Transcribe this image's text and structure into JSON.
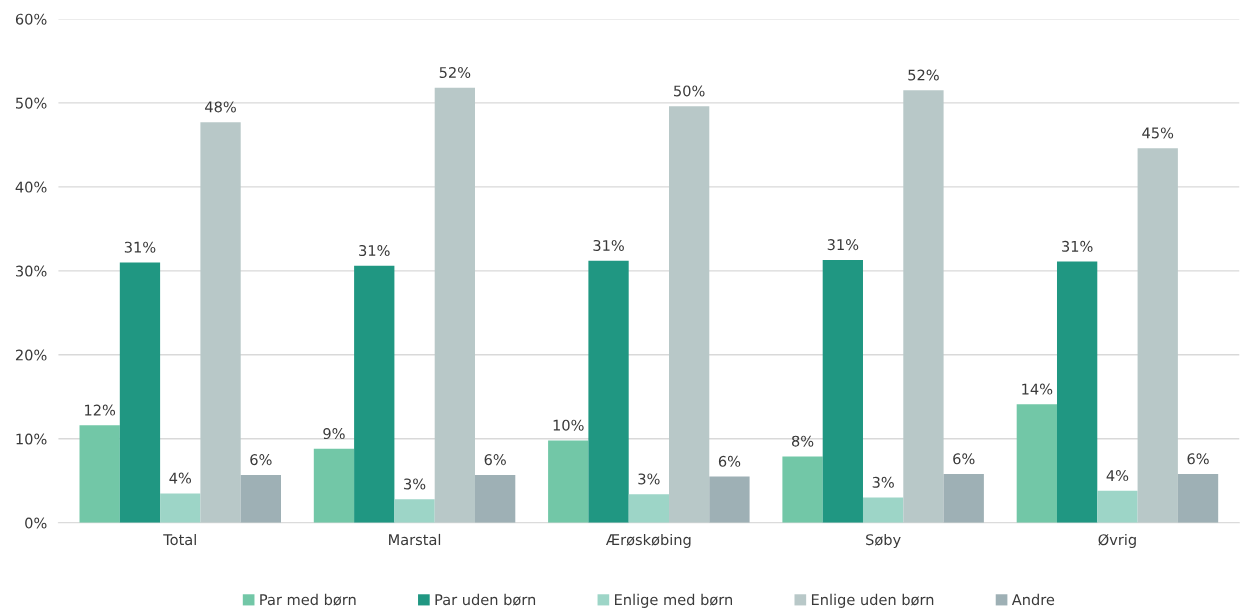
{
  "chart_data": {
    "type": "bar",
    "categories": [
      "Total",
      "Marstal",
      "Ærøskøbing",
      "Søby",
      "Øvrig"
    ],
    "series": [
      {
        "name": "Par med børn",
        "color": "#72c7a7",
        "values": [
          11.6,
          8.8,
          9.8,
          7.9,
          14.1
        ],
        "value_labels": [
          "12%",
          "9%",
          "10%",
          "8%",
          "14%"
        ]
      },
      {
        "name": "Par uden børn",
        "color": "#209782",
        "values": [
          31.0,
          30.6,
          31.2,
          31.3,
          31.1
        ],
        "value_labels": [
          "31%",
          "31%",
          "31%",
          "31%",
          "31%"
        ]
      },
      {
        "name": "Enlige med børn",
        "color": "#9dd5c7",
        "values": [
          3.5,
          2.8,
          3.4,
          3.0,
          3.8
        ],
        "value_labels": [
          "4%",
          "3%",
          "3%",
          "3%",
          "4%"
        ]
      },
      {
        "name": "Enlige uden børn",
        "color": "#b8c8c8",
        "values": [
          47.7,
          51.8,
          49.6,
          51.5,
          44.6
        ],
        "value_labels": [
          "48%",
          "52%",
          "50%",
          "52%",
          "45%"
        ]
      },
      {
        "name": "Andre",
        "color": "#9eb0b5",
        "values": [
          5.7,
          5.7,
          5.5,
          5.8,
          5.8
        ],
        "value_labels": [
          "6%",
          "6%",
          "6%",
          "6%",
          "6%"
        ]
      }
    ],
    "ylim": [
      0,
      60
    ],
    "yticks": [
      {
        "value": 0,
        "label": "0%"
      },
      {
        "value": 10,
        "label": "10%"
      },
      {
        "value": 20,
        "label": "20%"
      },
      {
        "value": 30,
        "label": "30%"
      },
      {
        "value": 40,
        "label": "40%"
      },
      {
        "value": 50,
        "label": "50%"
      },
      {
        "value": 60,
        "label": "60%"
      }
    ],
    "grid": "y",
    "legend": "bottom"
  }
}
